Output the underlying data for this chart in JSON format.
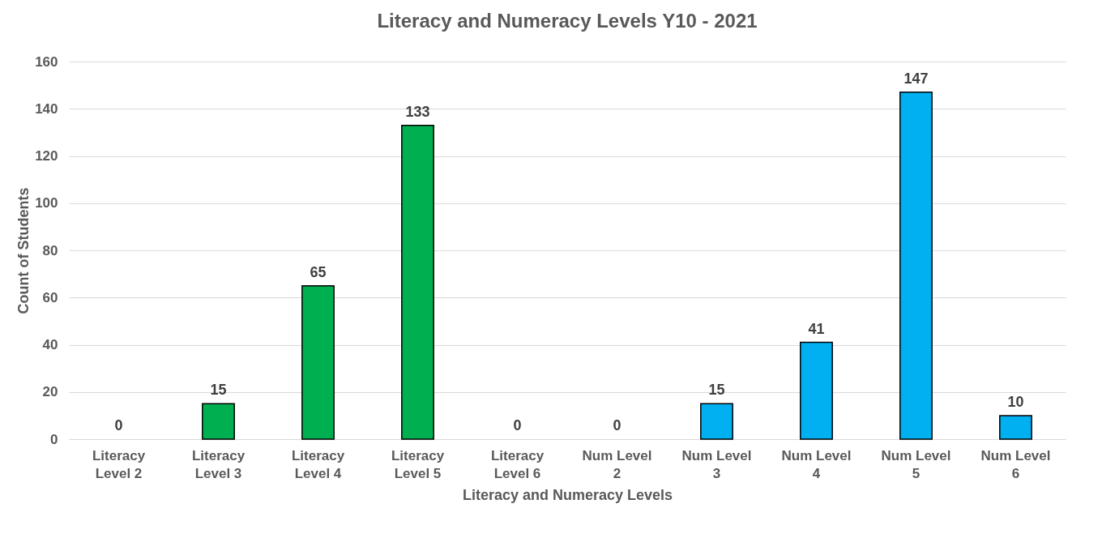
{
  "chart_data": {
    "type": "bar",
    "title": "Literacy and Numeracy Levels Y10 - 2021",
    "xlabel": "Literacy and Numeracy Levels",
    "ylabel": "Count of Students",
    "categories": [
      "Literacy Level 2",
      "Literacy Level 3",
      "Literacy Level 4",
      "Literacy Level 5",
      "Literacy Level 6",
      "Num Level 2",
      "Num Level 3",
      "Num Level 4",
      "Num Level 5",
      "Num Level 6"
    ],
    "values": [
      0,
      15,
      65,
      133,
      0,
      0,
      15,
      41,
      147,
      10
    ],
    "colors": [
      "#00b050",
      "#00b050",
      "#00b050",
      "#00b050",
      "#00b050",
      "#00b0f0",
      "#00b0f0",
      "#00b0f0",
      "#00b0f0",
      "#00b0f0"
    ],
    "ylim": [
      0,
      160
    ],
    "yticks": [
      0,
      20,
      40,
      60,
      80,
      100,
      120,
      140,
      160
    ],
    "grid": "y",
    "data_labels": true
  }
}
